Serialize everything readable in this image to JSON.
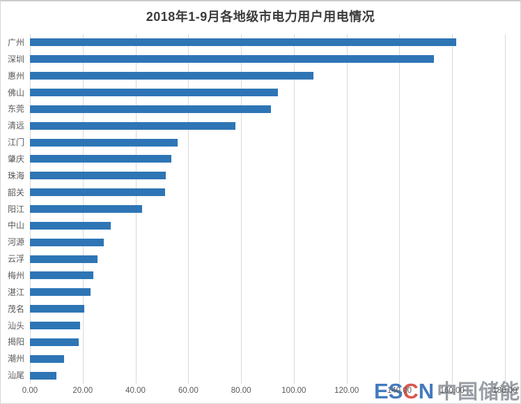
{
  "title": "2018年1-9月各地级市电力用户用电情况",
  "chart_data": {
    "type": "bar",
    "orientation": "horizontal",
    "title": "2018年1-9月各地级市电力用户用电情况",
    "categories": [
      "广州",
      "深圳",
      "惠州",
      "佛山",
      "东莞",
      "清远",
      "江门",
      "肇庆",
      "珠海",
      "韶关",
      "阳江",
      "中山",
      "河源",
      "云浮",
      "梅州",
      "湛江",
      "茂名",
      "汕头",
      "揭阳",
      "潮州",
      "汕尾"
    ],
    "values": [
      161.5,
      153.2,
      107.5,
      94.0,
      91.2,
      77.8,
      56.0,
      53.7,
      51.5,
      51.2,
      42.4,
      30.5,
      28.0,
      25.6,
      24.0,
      23.0,
      20.7,
      18.9,
      18.5,
      12.9,
      10.0
    ],
    "xlim": [
      0,
      180
    ],
    "x_ticks": [
      "0.00",
      "20.00",
      "40.00",
      "60.00",
      "80.00",
      "100.00",
      "120.00",
      "140.00",
      "160.00",
      "180.00"
    ],
    "grid": true,
    "legend": "none",
    "bar_color": "#2E75B6",
    "gridline_color": "#d9d9d9",
    "axis_label_color": "#595959",
    "xlabel": "",
    "ylabel": ""
  },
  "watermark": {
    "logo_letters": [
      {
        "ch": "E",
        "color": "#2f6db8"
      },
      {
        "ch": "S",
        "color": "#2f6db8"
      },
      {
        "ch": "C",
        "color": "#d6453c"
      },
      {
        "ch": "N",
        "color": "#2f6db8"
      }
    ],
    "logo_text": "ESCN",
    "name_text": "中国储能网",
    "name_color": "#8e949c"
  }
}
